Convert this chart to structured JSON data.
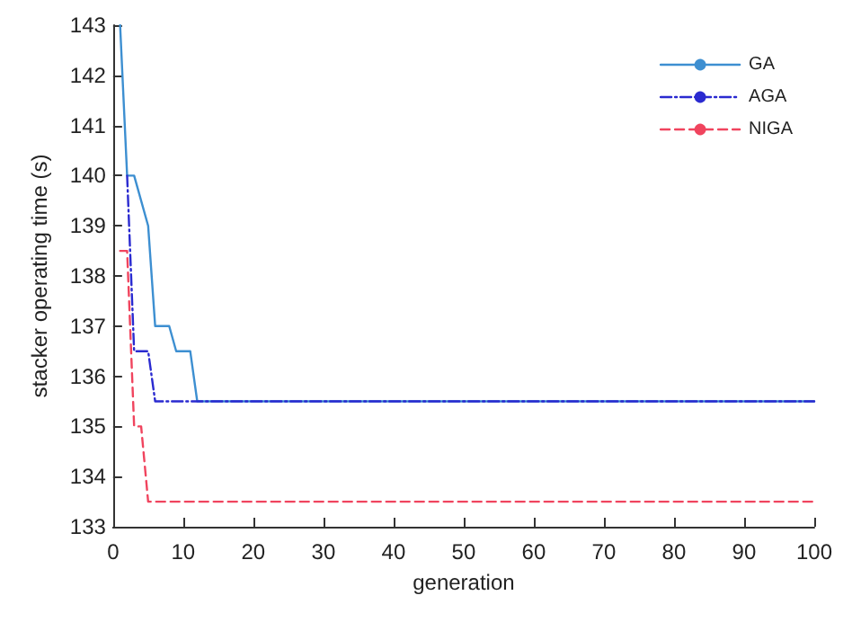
{
  "chart_data": {
    "type": "line",
    "xlabel": "generation",
    "ylabel": "stacker operating time (s)",
    "xlim": [
      0,
      100
    ],
    "xticks": [
      0,
      10,
      20,
      30,
      40,
      50,
      60,
      70,
      80,
      90,
      100
    ],
    "ylim": [
      133,
      143
    ],
    "yticks": [
      133,
      134,
      135,
      136,
      137,
      138,
      139,
      140,
      141,
      142,
      143
    ],
    "grid": false,
    "legend": "top right",
    "marker": "none",
    "series": [
      {
        "name": "GA",
        "color": "#3d8fd1",
        "line_style": "solid",
        "x": [
          1,
          2,
          3,
          5,
          6,
          8,
          9,
          11,
          12,
          100
        ],
        "values": [
          143,
          140,
          140,
          139,
          137,
          137,
          136.5,
          136.5,
          135.5,
          135.5
        ]
      },
      {
        "name": "AGA",
        "color": "#2a2ad0",
        "line_style": "dashdot",
        "x": [
          2,
          3,
          5,
          6,
          100
        ],
        "values": [
          140,
          136.5,
          136.5,
          135.5,
          135.5
        ]
      },
      {
        "name": "NIGA",
        "color": "#f0445e",
        "line_style": "dashed",
        "x": [
          1,
          2,
          3,
          4,
          5,
          100
        ],
        "values": [
          138.5,
          138.5,
          135,
          135,
          133.5,
          133.5
        ]
      }
    ]
  }
}
